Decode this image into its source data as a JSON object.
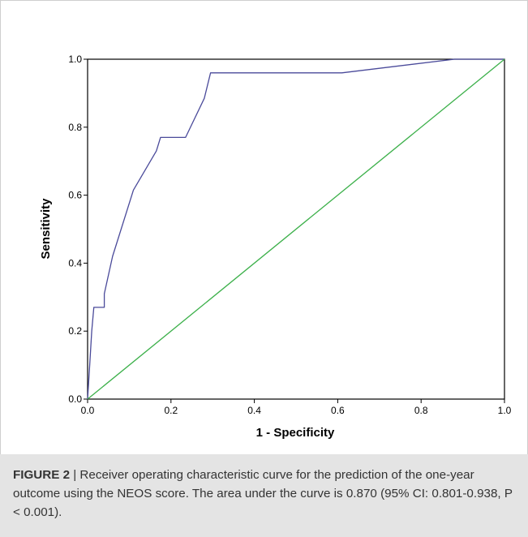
{
  "chart_data": {
    "type": "line",
    "title": "",
    "xlabel": "1 - Specificity",
    "ylabel": "Sensitivity",
    "xlim": [
      0.0,
      1.0
    ],
    "ylim": [
      0.0,
      1.0
    ],
    "x_ticks": [
      "0.0",
      "0.2",
      "0.4",
      "0.6",
      "0.8",
      "1.0"
    ],
    "y_ticks": [
      "0.0",
      "0.2",
      "0.4",
      "0.6",
      "0.8",
      "1.0"
    ],
    "grid": false,
    "series": [
      {
        "color": "#4a4a9a",
        "x": [
          0.0,
          0.005,
          0.01,
          0.015,
          0.04,
          0.04,
          0.06,
          0.11,
          0.165,
          0.175,
          0.235,
          0.28,
          0.295,
          0.61,
          0.88,
          1.0
        ],
        "y": [
          0.0,
          0.1,
          0.2,
          0.27,
          0.27,
          0.31,
          0.42,
          0.615,
          0.73,
          0.77,
          0.77,
          0.885,
          0.96,
          0.96,
          1.0,
          1.0
        ]
      },
      {
        "color": "#3cb04a",
        "x": [
          0.0,
          1.0
        ],
        "y": [
          0.0,
          1.0
        ]
      }
    ]
  },
  "caption": {
    "label": "FIGURE 2",
    "text": " | Receiver operating characteristic curve for the prediction of the one-year outcome using the NEOS score. The area under the curve is 0.870 (95% CI: 0.801-0.938, P < 0.001)."
  }
}
